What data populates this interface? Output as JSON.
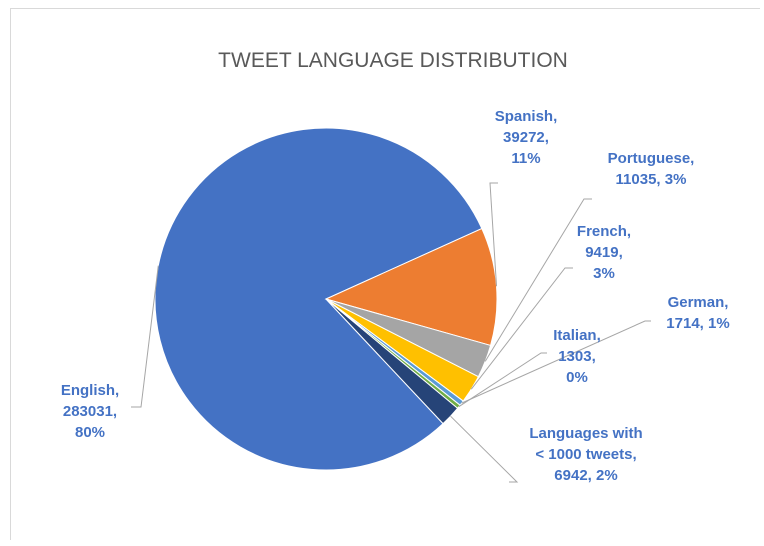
{
  "chart_data": {
    "type": "pie",
    "title": "TWEET LANGUAGE DISTRIBUTION",
    "slices": [
      {
        "label": "English",
        "value": 283031,
        "percent": "80%",
        "color": "#4472c4"
      },
      {
        "label": "Spanish",
        "value": 39272,
        "percent": "11%",
        "color": "#ed7d31"
      },
      {
        "label": "Portuguese",
        "value": 11035,
        "percent": "3%",
        "color": "#a5a5a5"
      },
      {
        "label": "French",
        "value": 9419,
        "percent": "3%",
        "color": "#ffc000"
      },
      {
        "label": "German",
        "value": 1714,
        "percent": "1%",
        "color": "#5b9bd5"
      },
      {
        "label": "Italian",
        "value": 1303,
        "percent": "0%",
        "color": "#70ad47"
      },
      {
        "label": "Languages with < 1000 tweets",
        "value": 6942,
        "percent": "2%",
        "color": "#264478"
      }
    ],
    "data_label_lines": [
      [
        "English,",
        "283031,",
        "80%"
      ],
      [
        "Spanish,",
        "39272,",
        "11%"
      ],
      [
        "Portuguese,",
        "11035, 3%"
      ],
      [
        "French,",
        "9419,",
        "3%"
      ],
      [
        "German,",
        "1714, 1%"
      ],
      [
        "Italian,",
        "1303,",
        "0%"
      ],
      [
        "Languages with",
        "< 1000 tweets,",
        "6942, 2%"
      ]
    ]
  }
}
